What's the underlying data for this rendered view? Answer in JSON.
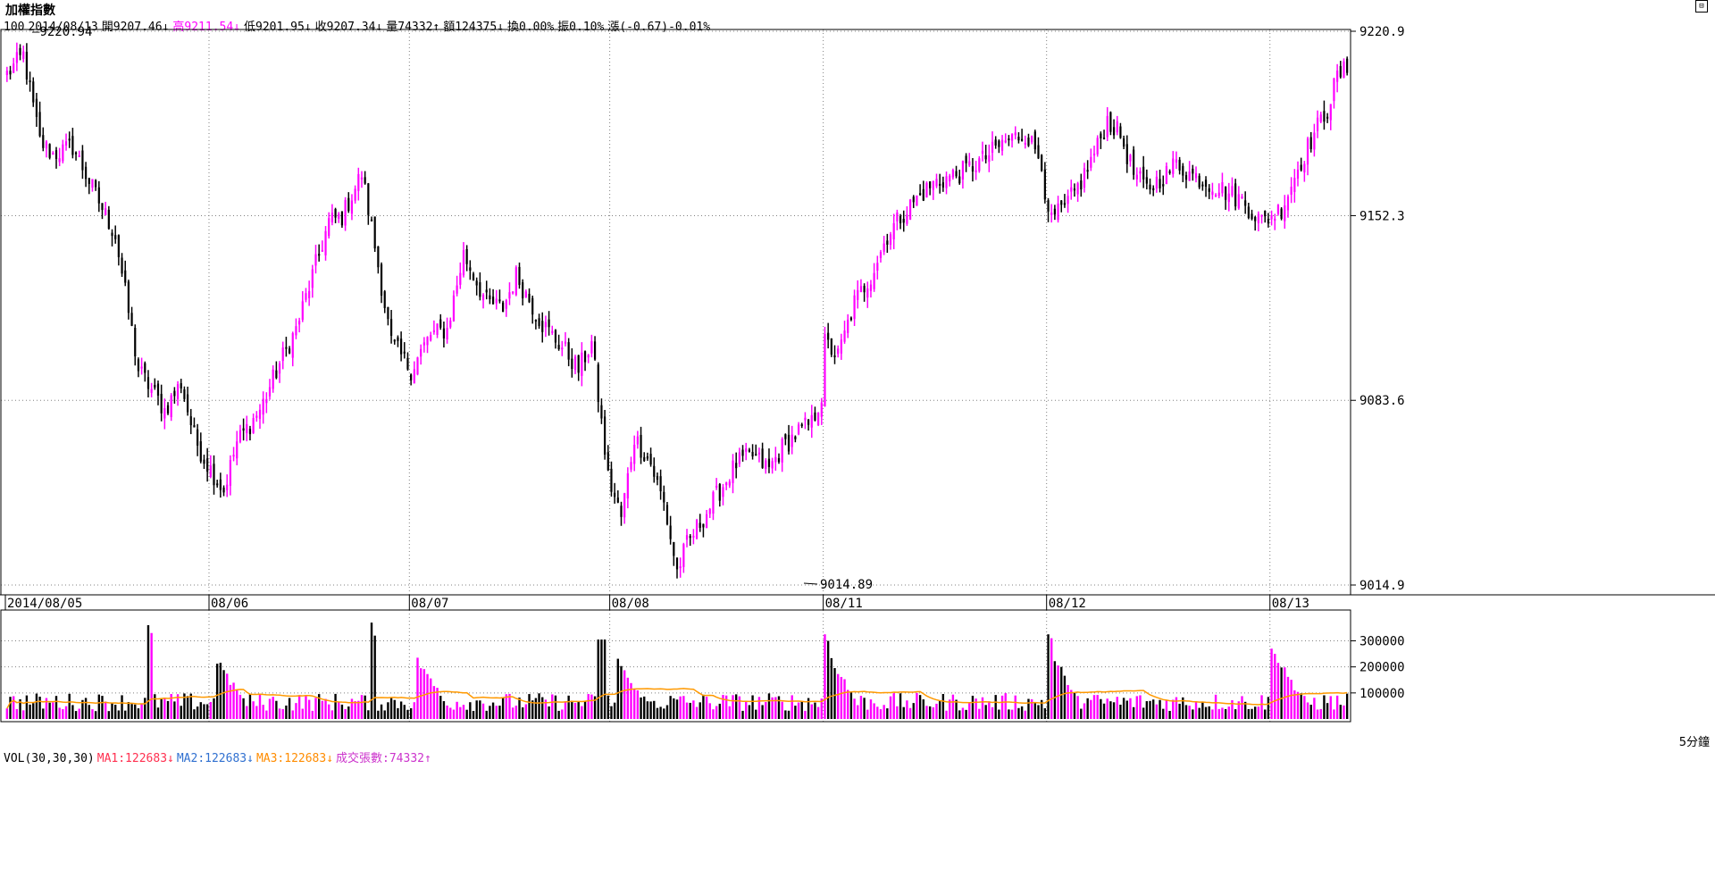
{
  "header": {
    "title": "加權指數",
    "info": [
      {
        "text": "100",
        "color": "#000000"
      },
      {
        "text": "2014/08/13",
        "color": "#000000"
      },
      {
        "text": "開9207.46↓",
        "color": "#000000"
      },
      {
        "text": "高9211.54↓",
        "color": "#ff00ff"
      },
      {
        "text": "低9201.95↓",
        "color": "#000000"
      },
      {
        "text": "收9207.34↓",
        "color": "#000000"
      },
      {
        "text": "量74332↑",
        "color": "#000000"
      },
      {
        "text": "額124375↓",
        "color": "#000000"
      },
      {
        "text": "換0.00%",
        "color": "#000000"
      },
      {
        "text": "振0.10%",
        "color": "#000000"
      },
      {
        "text": "漲(-0.67)-0.01%",
        "color": "#000000"
      }
    ],
    "restore_icon": "restore-icon"
  },
  "volume_header": [
    {
      "text": "VOL(30,30,30)",
      "color": "#000000"
    },
    {
      "text": "MA1:122683↓",
      "color": "#ff3050"
    },
    {
      "text": "MA2:122683↓",
      "color": "#3070d0"
    },
    {
      "text": "MA3:122683↓",
      "color": "#ff8c00"
    },
    {
      "text": "成交張數:74332↑",
      "color": "#cc33cc"
    }
  ],
  "period_label": "5分鐘",
  "colors": {
    "up": "#ff00ff",
    "down": "#000000",
    "ma": "#ff9900",
    "grid": "#808080"
  },
  "chart_data": {
    "type": "candlestick",
    "price_axis": {
      "ticks": [
        "9220.9",
        "9152.3",
        "9083.6",
        "9014.9"
      ],
      "range": [
        9014.9,
        9220.9
      ]
    },
    "volume_axis": {
      "ticks": [
        "300000",
        "200000",
        "100000"
      ],
      "range": [
        0,
        360000
      ]
    },
    "dates": [
      "2014/08/05",
      "08/06",
      "08/07",
      "08/08",
      "08/11",
      "08/12",
      "08/13"
    ],
    "annotations": {
      "high": "9220.94",
      "low": "9014.89"
    },
    "close_path": [
      [
        0,
        9205
      ],
      [
        5,
        9212
      ],
      [
        10,
        9180
      ],
      [
        14,
        9175
      ],
      [
        20,
        9178
      ],
      [
        27,
        9160
      ],
      [
        33,
        9145
      ],
      [
        40,
        9095
      ],
      [
        48,
        9080
      ],
      [
        53,
        9090
      ],
      [
        57,
        9070
      ],
      [
        60,
        9062
      ],
      [
        66,
        9050
      ],
      [
        70,
        9068
      ],
      [
        77,
        9080
      ],
      [
        84,
        9100
      ],
      [
        88,
        9110
      ],
      [
        93,
        9130
      ],
      [
        98,
        9150
      ],
      [
        102,
        9152
      ],
      [
        108,
        9168
      ],
      [
        111,
        9148
      ],
      [
        117,
        9105
      ],
      [
        123,
        9095
      ],
      [
        129,
        9108
      ],
      [
        134,
        9110
      ],
      [
        139,
        9138
      ],
      [
        146,
        9120
      ],
      [
        151,
        9118
      ],
      [
        155,
        9130
      ],
      [
        163,
        9112
      ],
      [
        170,
        9102
      ],
      [
        174,
        9095
      ],
      [
        178,
        9105
      ],
      [
        183,
        9055
      ],
      [
        187,
        9040
      ],
      [
        191,
        9070
      ],
      [
        196,
        9060
      ],
      [
        200,
        9045
      ],
      [
        204,
        9020
      ],
      [
        207,
        9030
      ],
      [
        212,
        9040
      ],
      [
        217,
        9050
      ],
      [
        222,
        9060
      ],
      [
        227,
        9063
      ],
      [
        232,
        9058
      ],
      [
        236,
        9066
      ],
      [
        241,
        9072
      ],
      [
        245,
        9075
      ],
      [
        247,
        9082
      ],
      [
        248,
        9085
      ],
      [
        249,
        9105
      ],
      [
        253,
        9100
      ],
      [
        258,
        9120
      ],
      [
        263,
        9130
      ],
      [
        268,
        9145
      ],
      [
        272,
        9152
      ],
      [
        278,
        9160
      ],
      [
        283,
        9165
      ],
      [
        290,
        9168
      ],
      [
        297,
        9173
      ],
      [
        304,
        9180
      ],
      [
        310,
        9183
      ],
      [
        315,
        9173
      ],
      [
        317,
        9150
      ],
      [
        322,
        9155
      ],
      [
        327,
        9165
      ],
      [
        332,
        9178
      ],
      [
        335,
        9188
      ],
      [
        339,
        9182
      ],
      [
        343,
        9168
      ],
      [
        347,
        9162
      ],
      [
        353,
        9168
      ],
      [
        356,
        9172
      ],
      [
        360,
        9168
      ],
      [
        365,
        9165
      ],
      [
        370,
        9162
      ],
      [
        376,
        9158
      ],
      [
        382,
        9150
      ],
      [
        388,
        9155
      ],
      [
        393,
        9170
      ],
      [
        398,
        9183
      ],
      [
        402,
        9192
      ],
      [
        405,
        9204
      ],
      [
        408,
        9207
      ]
    ],
    "volume_spikes": [
      {
        "bar": 43,
        "value": 360000
      },
      {
        "bar": 44,
        "value": 330000
      },
      {
        "bar": 111,
        "value": 370000
      },
      {
        "bar": 112,
        "value": 320000
      },
      {
        "bar": 180,
        "value": 305000
      },
      {
        "bar": 181,
        "value": 305000
      },
      {
        "bar": 182,
        "value": 305000
      },
      {
        "bar": 249,
        "value": 325000
      },
      {
        "bar": 250,
        "value": 300000
      },
      {
        "bar": 317,
        "value": 325000
      },
      {
        "bar": 318,
        "value": 310000
      },
      {
        "bar": 385,
        "value": 270000
      },
      {
        "bar": 386,
        "value": 250000
      }
    ]
  }
}
